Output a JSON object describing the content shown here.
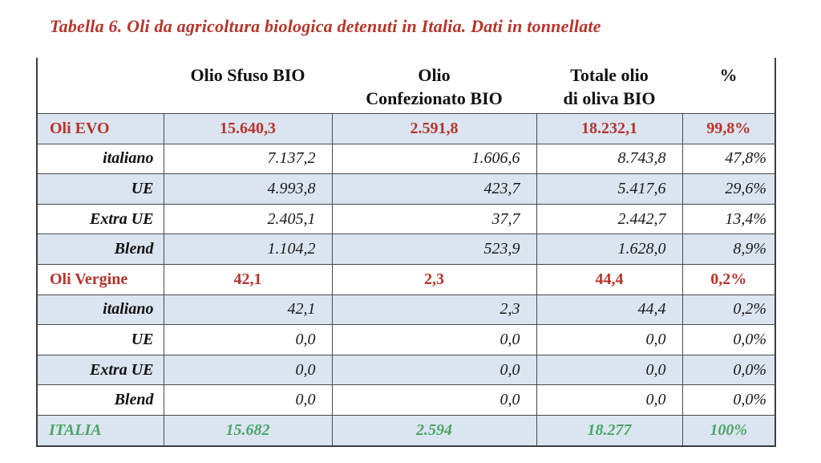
{
  "title": "Tabella 6. Oli da agricoltura biologica detenuti in Italia. Dati in tonnellate",
  "colors": {
    "title_red": "#b5342b",
    "group_row_red": "#b5342b",
    "total_row_green": "#4ba566",
    "stripe_blue": "#dbe5f1",
    "border_gray": "#4a4a4a"
  },
  "table": {
    "headers": [
      "",
      "Olio Sfuso BIO",
      "Olio\nConfezionato BIO",
      "Totale olio\ndi oliva BIO",
      "%"
    ],
    "rows": [
      {
        "label": "Oli EVO",
        "values": [
          "15.640,3",
          "2.591,8",
          "18.232,1",
          "99,8%"
        ]
      },
      {
        "label": "italiano",
        "values": [
          "7.137,2",
          "1.606,6",
          "8.743,8",
          "47,8%"
        ]
      },
      {
        "label": "UE",
        "values": [
          "4.993,8",
          "423,7",
          "5.417,6",
          "29,6%"
        ]
      },
      {
        "label": "Extra UE",
        "values": [
          "2.405,1",
          "37,7",
          "2.442,7",
          "13,4%"
        ]
      },
      {
        "label": "Blend",
        "values": [
          "1.104,2",
          "523,9",
          "1.628,0",
          "8,9%"
        ]
      },
      {
        "label": "Oli Vergine",
        "values": [
          "42,1",
          "2,3",
          "44,4",
          "0,2%"
        ]
      },
      {
        "label": "italiano",
        "values": [
          "42,1",
          "2,3",
          "44,4",
          "0,2%"
        ]
      },
      {
        "label": "UE",
        "values": [
          "0,0",
          "0,0",
          "0,0",
          "0,0%"
        ]
      },
      {
        "label": "Extra UE",
        "values": [
          "0,0",
          "0,0",
          "0,0",
          "0,0%"
        ]
      },
      {
        "label": "Blend",
        "values": [
          "0,0",
          "0,0",
          "0,0",
          "0,0%"
        ]
      },
      {
        "label": "ITALIA",
        "values": [
          "15.682",
          "2.594",
          "18.277",
          "100%"
        ]
      }
    ]
  }
}
